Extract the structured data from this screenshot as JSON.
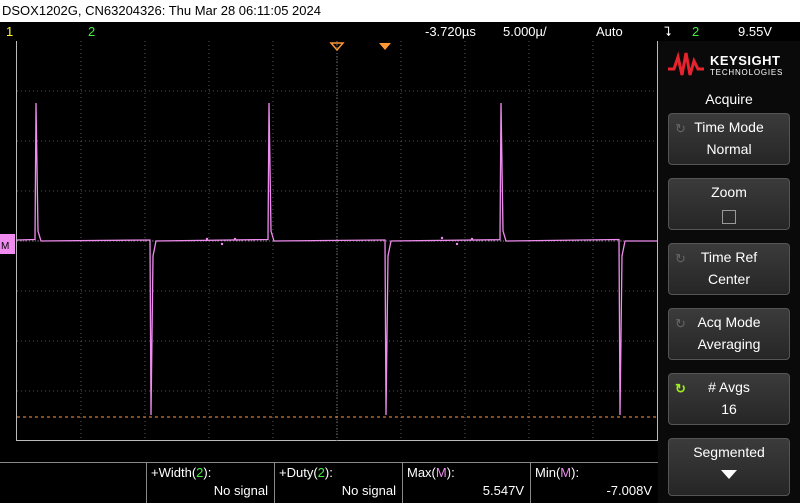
{
  "title": "DSOX1202G, CN63204326: Thu Mar 28 06:11:05 2024",
  "status": {
    "ch1": "1",
    "ch2": "2",
    "delay": "-3.720µs",
    "timebase": "5.000µ/",
    "trigger_mode": "Auto",
    "trigger_icon": "trigger-edge-icon",
    "trigger_source": "2",
    "trigger_level": "9.55V"
  },
  "brand": {
    "name": "KEYSIGHT",
    "sub": "TECHNOLOGIES"
  },
  "panel": {
    "title": "Acquire",
    "buttons": [
      {
        "label": "Time Mode",
        "value": "Normal"
      },
      {
        "label": "Zoom",
        "value": ""
      },
      {
        "label": "Time Ref",
        "value": "Center"
      },
      {
        "label": "Acq Mode",
        "value": "Averaging"
      },
      {
        "label": "# Avgs",
        "value": "16"
      },
      {
        "label": "Segmented",
        "value": ""
      }
    ]
  },
  "measurements": [
    {
      "name": "+Width(",
      "src": "2",
      "close": "):",
      "value": "No signal"
    },
    {
      "name": "+Duty(",
      "src": "2",
      "close": "):",
      "value": "No signal"
    },
    {
      "name": "Max(",
      "src": "M",
      "close": "):",
      "value": "5.547V"
    },
    {
      "name": "Min(",
      "src": "M",
      "close": "):",
      "value": "-7.008V"
    }
  ],
  "colors": {
    "trace": "#f08cf0",
    "ch1": "#ffff33",
    "ch2": "#44ee44",
    "cursor": "#ff9933"
  }
}
